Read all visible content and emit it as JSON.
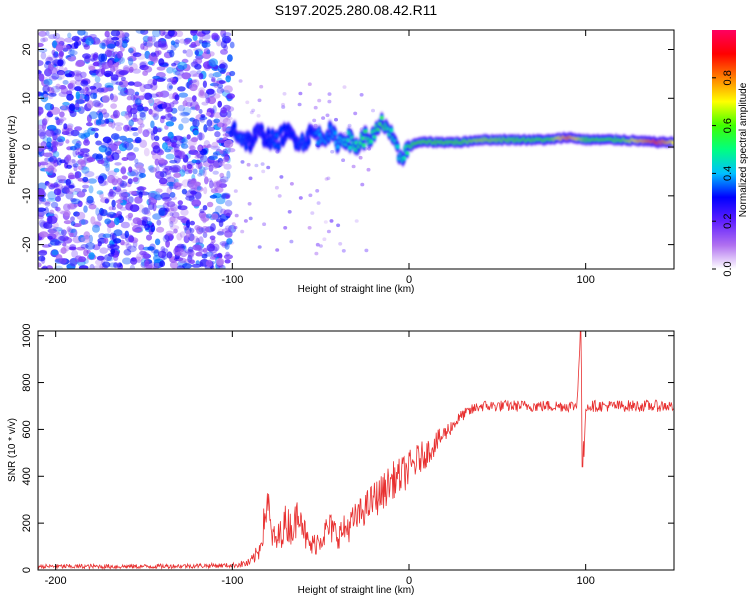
{
  "title": "S197.2025.280.08.42.R11",
  "chart_data": [
    {
      "type": "heatmap",
      "title": "S197.2025.280.08.42.R11",
      "xlabel": "Height of straight line (km)",
      "ylabel": "Frequency (Hz)",
      "xlim": [
        -210,
        150
      ],
      "ylim": [
        -25,
        24
      ],
      "x_ticks": [
        -200,
        -100,
        0,
        100
      ],
      "y_ticks": [
        -20,
        -10,
        0,
        10,
        20
      ],
      "colorbar": {
        "label": "Normalized spectral amplitude",
        "range": [
          0.0,
          1.0
        ],
        "ticks": [
          0.0,
          0.2,
          0.4,
          0.6,
          0.8
        ],
        "tick_labels": [
          "0.0",
          "0.2",
          "0.4",
          "0.6",
          "0.8"
        ],
        "colormap": [
          "#ffffff",
          "#b070f0",
          "#6020ff",
          "#0000ff",
          "#00c0ff",
          "#00ff80",
          "#40ff00",
          "#ffff00",
          "#ff8000",
          "#ff0000",
          "#ff0060"
        ]
      },
      "signal_track": {
        "x": [
          -100,
          -95,
          -90,
          -85,
          -80,
          -75,
          -70,
          -65,
          -60,
          -55,
          -50,
          -45,
          -40,
          -35,
          -30,
          -25,
          -20,
          -15,
          -12,
          -8,
          -5,
          -2,
          0,
          5,
          10,
          20,
          30,
          40,
          60,
          80,
          90,
          100,
          120,
          140,
          150
        ],
        "y": [
          4,
          2,
          1,
          3,
          2,
          1,
          3,
          2,
          1,
          3,
          2,
          3,
          1,
          2,
          0,
          2,
          2,
          5,
          4,
          0,
          -2,
          -1,
          0,
          1,
          1,
          1,
          1,
          1.5,
          1.5,
          1.5,
          2,
          1.5,
          1.5,
          1,
          1
        ],
        "amplitude": [
          0.3,
          0.35,
          0.3,
          0.25,
          0.3,
          0.35,
          0.3,
          0.3,
          0.35,
          0.3,
          0.4,
          0.35,
          0.4,
          0.45,
          0.5,
          0.55,
          0.5,
          0.6,
          0.5,
          0.45,
          0.45,
          0.5,
          0.55,
          0.6,
          0.6,
          0.6,
          0.6,
          0.65,
          0.6,
          0.6,
          0.8,
          0.6,
          0.6,
          0.85,
          0.7
        ]
      },
      "noise_region_x": [
        -210,
        -100
      ],
      "noise_amplitude_max": 0.3
    },
    {
      "type": "line",
      "xlabel": "Height of straight line (km)",
      "ylabel": "SNR (10 * v/v)",
      "xlim": [
        -210,
        150
      ],
      "ylim": [
        0,
        1020
      ],
      "x_ticks": [
        -200,
        -100,
        0,
        100
      ],
      "y_ticks": [
        0,
        200,
        400,
        600,
        800,
        1000
      ],
      "color": "#e83030",
      "series": [
        {
          "name": "SNR",
          "x": [
            -210,
            -150,
            -100,
            -90,
            -85,
            -82,
            -80,
            -78,
            -75,
            -70,
            -65,
            -62,
            -58,
            -55,
            -50,
            -45,
            -40,
            -35,
            -30,
            -25,
            -20,
            -15,
            -10,
            -5,
            0,
            5,
            10,
            15,
            20,
            25,
            30,
            40,
            60,
            80,
            95,
            97,
            99,
            100,
            110,
            130,
            150
          ],
          "y": [
            15,
            15,
            20,
            30,
            80,
            200,
            310,
            150,
            120,
            200,
            180,
            280,
            120,
            100,
            140,
            180,
            150,
            180,
            220,
            260,
            300,
            330,
            380,
            400,
            430,
            470,
            500,
            540,
            580,
            620,
            660,
            700,
            700,
            700,
            700,
            1000,
            470,
            700,
            700,
            700,
            700
          ],
          "noise_amplitude": [
            10,
            10,
            10,
            20,
            40,
            80,
            80,
            60,
            60,
            80,
            80,
            90,
            60,
            50,
            60,
            70,
            60,
            70,
            70,
            70,
            80,
            80,
            80,
            80,
            80,
            70,
            60,
            50,
            40,
            30,
            25,
            25,
            25,
            25,
            25,
            0,
            0,
            25,
            25,
            25,
            25
          ]
        }
      ]
    }
  ]
}
